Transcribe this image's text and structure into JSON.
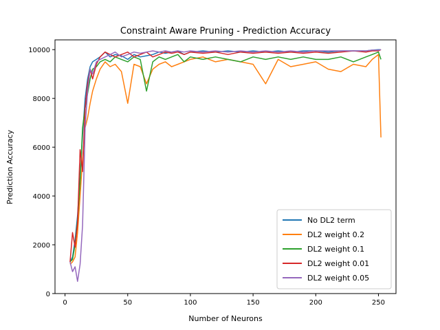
{
  "chart_data": {
    "type": "line",
    "title": "Constraint Aware Pruning - Prediction Accuracy",
    "xlabel": "Number of Neurons",
    "ylabel": "Prediction Accuracy",
    "xlim": [
      -8,
      264
    ],
    "ylim": [
      0,
      10400
    ],
    "xticks": [
      0,
      50,
      100,
      150,
      200,
      250
    ],
    "yticks": [
      0,
      2000,
      4000,
      6000,
      8000,
      10000
    ],
    "legend_position": "lower-right",
    "grid": false,
    "x": [
      4,
      6,
      8,
      10,
      12,
      14,
      16,
      18,
      20,
      22,
      25,
      28,
      32,
      36,
      40,
      45,
      50,
      55,
      60,
      65,
      70,
      75,
      80,
      85,
      90,
      95,
      100,
      110,
      120,
      130,
      140,
      150,
      160,
      170,
      180,
      190,
      200,
      210,
      220,
      230,
      240,
      245,
      250,
      252
    ],
    "series": [
      {
        "name": "No DL2 term",
        "color": "#1f77b4",
        "values": [
          1300,
          1500,
          2200,
          3200,
          4800,
          6500,
          8000,
          8800,
          9300,
          9500,
          9600,
          9700,
          9900,
          9700,
          9800,
          9750,
          9600,
          9800,
          9700,
          9750,
          9800,
          9900,
          9850,
          9900,
          9950,
          9800,
          9900,
          9950,
          9900,
          9950,
          9900,
          9950,
          9900,
          9950,
          9900,
          9950,
          9950,
          9900,
          9950,
          9950,
          9950,
          9980,
          10000,
          10000
        ]
      },
      {
        "name": "DL2 weight 0.2",
        "color": "#ff7f0e",
        "values": [
          1200,
          1300,
          1500,
          2500,
          4000,
          5500,
          6800,
          7200,
          7800,
          8300,
          8800,
          9200,
          9500,
          9300,
          9400,
          9100,
          7800,
          9400,
          9300,
          8600,
          9200,
          9400,
          9500,
          9300,
          9400,
          9500,
          9600,
          9700,
          9500,
          9600,
          9500,
          9400,
          8600,
          9600,
          9300,
          9400,
          9500,
          9200,
          9100,
          9400,
          9300,
          9600,
          9800,
          6400
        ]
      },
      {
        "name": "DL2 weight 0.1",
        "color": "#2ca02c",
        "values": [
          1300,
          1400,
          2000,
          3000,
          4600,
          6800,
          7600,
          8200,
          8800,
          9200,
          9300,
          9500,
          9600,
          9500,
          9700,
          9600,
          9500,
          9700,
          9600,
          8300,
          9500,
          9700,
          9600,
          9700,
          9800,
          9500,
          9700,
          9600,
          9700,
          9600,
          9500,
          9700,
          9600,
          9700,
          9600,
          9700,
          9600,
          9600,
          9700,
          9500,
          9700,
          9800,
          9900,
          9600
        ]
      },
      {
        "name": "DL2 weight 0.01",
        "color": "#d62728",
        "values": [
          1300,
          2500,
          1900,
          2900,
          5900,
          5000,
          7600,
          8600,
          9200,
          8800,
          9400,
          9700,
          9900,
          9800,
          9700,
          9800,
          9900,
          9700,
          9800,
          9900,
          9700,
          9800,
          9900,
          9850,
          9900,
          9800,
          9900,
          9850,
          9900,
          9800,
          9900,
          9850,
          9900,
          9850,
          9900,
          9850,
          9900,
          9850,
          9900,
          9950,
          9900,
          9950,
          9950,
          10000
        ]
      },
      {
        "name": "DL2 weight 0.05",
        "color": "#9467bd",
        "values": [
          1300,
          900,
          1100,
          500,
          1200,
          2800,
          6800,
          8300,
          9200,
          9000,
          9500,
          9600,
          9700,
          9800,
          9900,
          9700,
          9800,
          9900,
          9850,
          9900,
          9950,
          9900,
          9950,
          9900,
          9950,
          9900,
          9950,
          9900,
          9950,
          9900,
          9950,
          9900,
          9950,
          9900,
          9950,
          9900,
          9950,
          9950,
          9950,
          9950,
          9950,
          9980,
          9980,
          10000
        ]
      }
    ]
  }
}
